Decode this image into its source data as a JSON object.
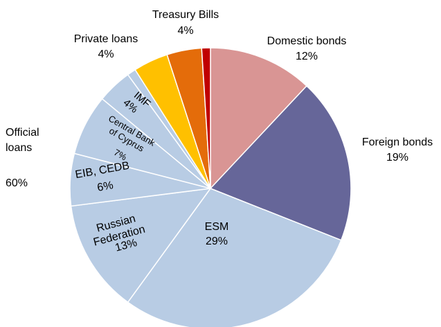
{
  "chart_data": {
    "type": "pie",
    "categories": [
      "Domestic bonds",
      "Foreign bonds",
      "ESM",
      "Russian\nFederation",
      "EIB, CEDB",
      "Central Bank\nof Cyprus",
      "IMF",
      null,
      "Private loans",
      "Treasury Bills",
      null
    ],
    "values": [
      12,
      19,
      29,
      13,
      6,
      7,
      4,
      1,
      4,
      4,
      1
    ],
    "value_labels": [
      "12%",
      "19%",
      "29%",
      "13%",
      "6%",
      "7%",
      "4%",
      null,
      "4%",
      "4%",
      null
    ],
    "colors": [
      "#d99594",
      "#666699",
      "#b8cce4",
      "#b8cce4",
      "#b8cce4",
      "#b8cce4",
      "#b8cce4",
      "#b8cce4",
      "#ffc000",
      "#e46c0a",
      "#c00000"
    ],
    "annotations": [
      "Official\nloans",
      "60%"
    ]
  }
}
